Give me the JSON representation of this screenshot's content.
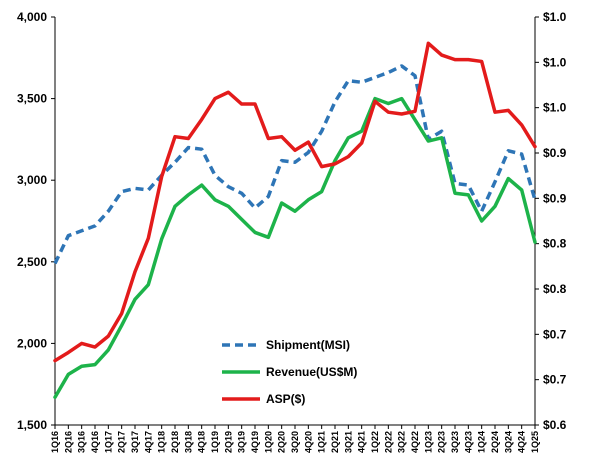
{
  "chart_data": {
    "type": "line",
    "title": "",
    "xlabel": "",
    "ylabel_left": "",
    "ylabel_right": "",
    "grid": false,
    "legend_position": "bottom-center",
    "categories": [
      "1Q16",
      "2Q16",
      "3Q16",
      "4Q16",
      "1Q17",
      "2Q17",
      "3Q17",
      "4Q17",
      "1Q18",
      "2Q18",
      "3Q18",
      "4Q18",
      "1Q19",
      "2Q19",
      "3Q19",
      "4Q19",
      "1Q20",
      "2Q20",
      "3Q20",
      "4Q20",
      "1Q21",
      "2Q21",
      "3Q21",
      "4Q21",
      "1Q22",
      "2Q22",
      "3Q22",
      "4Q22",
      "1Q23",
      "2Q23",
      "3Q23",
      "4Q23",
      "1Q24",
      "2Q24",
      "3Q24",
      "4Q24",
      "1Q25"
    ],
    "left_axis": {
      "ylim": [
        1500,
        4000
      ],
      "ticks": [
        1500,
        2000,
        2500,
        3000,
        3500,
        4000
      ],
      "tick_labels": [
        "1,500",
        "2,000",
        "2,500",
        "3,000",
        "3,500",
        "4,000"
      ]
    },
    "right_axis": {
      "ylim": [
        0.6,
        1.05
      ],
      "ticks": [
        0.6,
        0.65,
        0.7,
        0.75,
        0.8,
        0.85,
        0.9,
        0.95,
        1.0,
        1.05
      ],
      "tick_labels": [
        "$0.6",
        "$0.7",
        "$0.7",
        "$0.8",
        "$0.8",
        "$0.9",
        "$0.9",
        "$1.0",
        "$1.0",
        "$1.0"
      ]
    },
    "series": [
      {
        "name": "Shipment(MSI)",
        "axis": "left",
        "color": "#2E75B6",
        "style": "dashed",
        "values": [
          2490,
          2660,
          2690,
          2720,
          2810,
          2930,
          2950,
          2940,
          3030,
          3110,
          3200,
          3190,
          3030,
          2960,
          2920,
          2830,
          2900,
          3120,
          3110,
          3170,
          3300,
          3480,
          3610,
          3600,
          3630,
          3660,
          3700,
          3640,
          3250,
          3300,
          2980,
          2970,
          2810,
          2990,
          3180,
          3160,
          2880
        ]
      },
      {
        "name": "Revenue(US$M)",
        "axis": "left",
        "color": "#1DB34A",
        "style": "solid",
        "values": [
          1670,
          1810,
          1860,
          1870,
          1960,
          2110,
          2270,
          2360,
          2640,
          2840,
          2910,
          2970,
          2880,
          2840,
          2760,
          2680,
          2650,
          2860,
          2810,
          2880,
          2930,
          3120,
          3260,
          3300,
          3500,
          3470,
          3500,
          3370,
          3240,
          3260,
          2920,
          2910,
          2750,
          2840,
          3010,
          2940,
          2620
        ]
      },
      {
        "name": "ASP($)",
        "axis": "right",
        "color": "#E31B1B",
        "style": "solid",
        "values": [
          0.671,
          0.68,
          0.69,
          0.686,
          0.698,
          0.723,
          0.769,
          0.806,
          0.874,
          0.918,
          0.916,
          0.937,
          0.96,
          0.967,
          0.954,
          0.954,
          0.916,
          0.918,
          0.903,
          0.912,
          0.885,
          0.888,
          0.896,
          0.911,
          0.957,
          0.945,
          0.943,
          0.946,
          1.021,
          1.008,
          1.003,
          1.003,
          1.001,
          0.945,
          0.947,
          0.931,
          0.907
        ]
      }
    ]
  }
}
